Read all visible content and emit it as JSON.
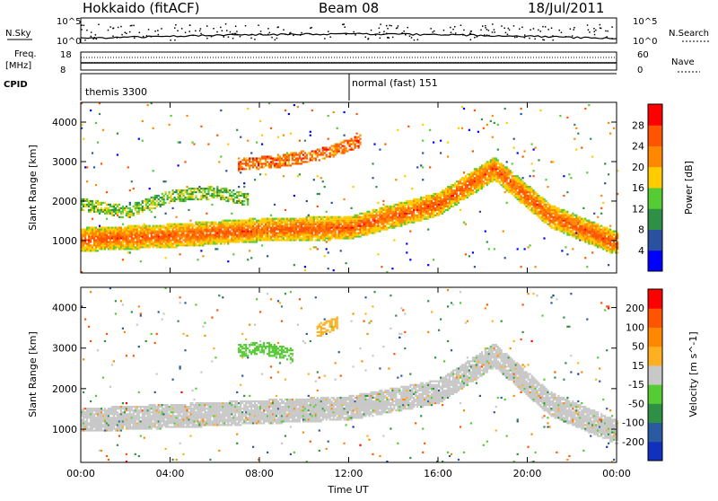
{
  "header": {
    "station": "Hokkaido (fitACF)",
    "beam": "Beam 08",
    "date": "18/Jul/2011"
  },
  "top_panels": {
    "nsky_label": "N.Sky",
    "nsky_ticks": [
      "10^5",
      "10^0"
    ],
    "nsearch_label": "N.Search",
    "nsearch_ticks": [
      "10^5",
      "10^0"
    ],
    "freq_label": "Freq.",
    "freq_unit": "[MHz]",
    "freq_ticks": [
      "18",
      "8"
    ],
    "nave_label": "Nave",
    "nave_ticks": [
      "60",
      "0"
    ],
    "cpid_label": "CPID",
    "cpid_modes": [
      {
        "name": "themis 3300",
        "start_hour": 0
      },
      {
        "name": "normal (fast) 151",
        "start_hour": 12
      }
    ]
  },
  "chart_data": [
    {
      "type": "heatmap",
      "title": "",
      "xlabel": "Time UT",
      "ylabel": "Slant Range [km]",
      "colorbar_label": "Power [dB]",
      "colorbar_ticks": [
        4,
        8,
        12,
        16,
        20,
        24,
        28
      ],
      "colorbar_range": [
        0,
        32
      ],
      "colors": [
        "#0000ff",
        "#2a50a0",
        "#2f8f45",
        "#55cc33",
        "#ffcc00",
        "#ff8800",
        "#ff5500",
        "#ff0000"
      ],
      "x_ticks": [
        "00:00",
        "04:00",
        "08:00",
        "12:00",
        "16:00",
        "20:00",
        "00:00"
      ],
      "xlim": [
        0,
        24
      ],
      "y_ticks": [
        1000,
        2000,
        3000,
        4000
      ],
      "ylim": [
        180,
        4500
      ],
      "features": [
        {
          "name": "main band",
          "time": [
            0,
            4,
            8,
            12,
            16,
            18.5,
            21,
            24
          ],
          "range": [
            1000,
            1100,
            1250,
            1300,
            1900,
            2800,
            1600,
            900
          ],
          "value": 26
        },
        {
          "name": "morning upper band",
          "time": [
            0,
            2,
            4,
            6,
            7.5
          ],
          "range": [
            1900,
            1700,
            2100,
            2200,
            2000
          ],
          "value": 14
        },
        {
          "name": "far range patch",
          "time": [
            7,
            9,
            11,
            12.5
          ],
          "range": [
            2900,
            3000,
            3200,
            3500
          ],
          "value": 24
        }
      ]
    },
    {
      "type": "heatmap",
      "title": "",
      "xlabel": "Time UT",
      "ylabel": "Slant Range [km]",
      "colorbar_label": "Velocity [m s^-1]",
      "colorbar_ticks": [
        200,
        100,
        50,
        15,
        -15,
        -50,
        -100,
        -200
      ],
      "colorbar_range": [
        -250,
        250
      ],
      "colors": [
        "#1030c0",
        "#2a5aa0",
        "#2f8f45",
        "#55cc33",
        "#c8c8c8",
        "#ffb020",
        "#ff8800",
        "#ff5500",
        "#ff0000"
      ],
      "x_ticks": [
        "00:00",
        "04:00",
        "08:00",
        "12:00",
        "16:00",
        "20:00",
        "00:00"
      ],
      "xlim": [
        0,
        24
      ],
      "y_ticks": [
        1000,
        2000,
        3000,
        4000
      ],
      "ylim": [
        180,
        4500
      ],
      "features": [
        {
          "name": "ground scatter band",
          "time": [
            0,
            4,
            8,
            12,
            16,
            18.5,
            21,
            24
          ],
          "range": [
            1200,
            1300,
            1400,
            1500,
            1900,
            2800,
            1600,
            900
          ],
          "value": 0
        },
        {
          "name": "positive flow patch",
          "time": [
            10.5,
            11,
            11.5
          ],
          "range": [
            3400,
            3500,
            3600
          ],
          "value": 60
        },
        {
          "name": "negative flow patch",
          "time": [
            7,
            8,
            9.5
          ],
          "range": [
            2900,
            3000,
            2800
          ],
          "value": -40
        }
      ]
    }
  ]
}
